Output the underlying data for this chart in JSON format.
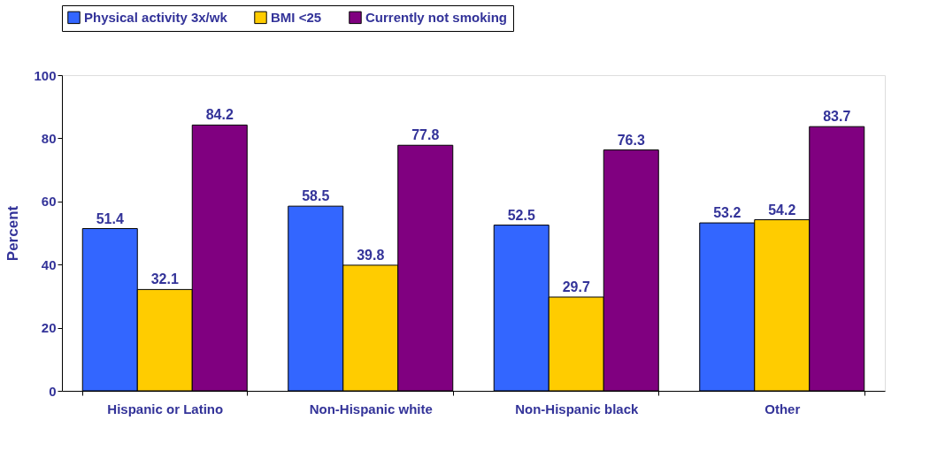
{
  "chart_data": {
    "type": "bar",
    "ylabel": "Percent",
    "categories": [
      "Hispanic or Latino",
      "Non-Hispanic white",
      "Non-Hispanic black",
      "Other"
    ],
    "series": [
      {
        "name": "Physical activity 3x/wk",
        "color": "#3366ff",
        "values": [
          51.4,
          58.5,
          52.5,
          53.2
        ]
      },
      {
        "name": "BMI <25",
        "color": "#ffcc00",
        "values": [
          32.1,
          39.8,
          29.7,
          54.2
        ]
      },
      {
        "name": "Currently not smoking",
        "color": "#800080",
        "values": [
          84.2,
          77.8,
          76.3,
          83.7
        ]
      }
    ],
    "ylim": [
      0,
      100
    ],
    "yticks": [
      0,
      20,
      40,
      60,
      80,
      100
    ],
    "grid": false,
    "legend": "top",
    "data_labels": true
  }
}
